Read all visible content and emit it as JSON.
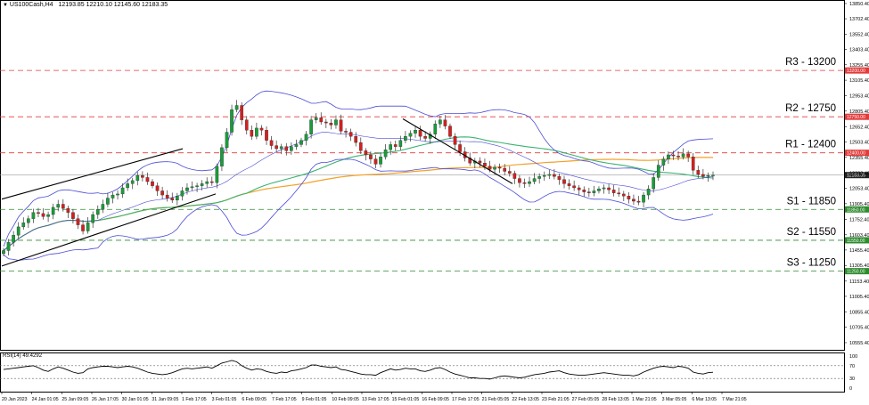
{
  "header": {
    "symbol": "US100Cash,H4",
    "ohlc": "12193.85 12210.10 12145.60 12183.35"
  },
  "rsi_header": "RSI(14) 49.4292",
  "colors": {
    "resistance": "#e23b3b",
    "support": "#2e8b2e",
    "bull": "#1a9c3a",
    "bear": "#d22020",
    "bollinger": "#4b4bd6",
    "ma_green": "#3cb371",
    "ma_orange": "#f2a22a",
    "channel": "#000000",
    "trendline": "#000000",
    "rsi": "#000000"
  },
  "chart_data": {
    "type": "candlestick",
    "symbol": "US100Cash",
    "timeframe": "H4",
    "ylim": [
      10555,
      13850
    ],
    "price_ticks": [
      "13850.40",
      "13702.40",
      "13552.40",
      "13403.40",
      "13255.40",
      "13105.40",
      "12953.40",
      "12805.40",
      "12652.40",
      "12503.40",
      "12355.40",
      "12203.40",
      "12053.40",
      "11905.40",
      "11752.40",
      "11603.40",
      "11455.40",
      "11305.40",
      "11153.40",
      "11005.40",
      "10855.40",
      "10705.40",
      "10555.40"
    ],
    "current_price": "12183.35",
    "levels": [
      {
        "name": "R3 - 13200",
        "value": 13200,
        "tag": "13200.00",
        "kind": "resistance"
      },
      {
        "name": "R2 - 12750",
        "value": 12750,
        "tag": "12750.00",
        "kind": "resistance"
      },
      {
        "name": "R1 - 12400",
        "value": 12400,
        "tag": "12400.00",
        "kind": "resistance"
      },
      {
        "name": "S1 - 11850",
        "value": 11850,
        "tag": "11850.00",
        "kind": "support"
      },
      {
        "name": "S2 - 11550",
        "value": 11550,
        "tag": "11550.00",
        "kind": "support"
      },
      {
        "name": "S3 - 11250",
        "value": 11250,
        "tag": "11250.00",
        "kind": "support"
      }
    ],
    "x_labels": [
      "20 Jan 2023",
      "24 Jan 01:05",
      "25 Jan 09:05",
      "26 Jan 17:05",
      "30 Jan 01:05",
      "31 Jan 09:05",
      "1 Feb 17:05",
      "3 Feb 01:05",
      "6 Feb 09:05",
      "7 Feb 17:05",
      "9 Feb 01:05",
      "10 Feb 09:05",
      "13 Feb 17:05",
      "15 Feb 01:05",
      "16 Feb 09:05",
      "17 Feb 17:05",
      "21 Feb 05:05",
      "22 Feb 13:05",
      "23 Feb 21:05",
      "27 Feb 05:05",
      "28 Feb 13:05",
      "1 Mar 21:05",
      "3 Mar 05:05",
      "6 Mar 13:05",
      "7 Mar 21:05"
    ],
    "closes": [
      11450,
      11530,
      11600,
      11680,
      11720,
      11760,
      11820,
      11810,
      11780,
      11800,
      11870,
      11900,
      11860,
      11820,
      11760,
      11700,
      11640,
      11720,
      11800,
      11850,
      11900,
      11960,
      11990,
      12000,
      12060,
      12100,
      12130,
      12180,
      12160,
      12120,
      12080,
      12030,
      11990,
      11960,
      11940,
      11980,
      12030,
      12060,
      12070,
      12080,
      12100,
      12120,
      12110,
      12270,
      12450,
      12600,
      12820,
      12860,
      12720,
      12620,
      12560,
      12640,
      12620,
      12520,
      12470,
      12440,
      12460,
      12420,
      12460,
      12480,
      12520,
      12580,
      12720,
      12740,
      12700,
      12690,
      12670,
      12720,
      12610,
      12600,
      12560,
      12500,
      12420,
      12380,
      12340,
      12290,
      12360,
      12430,
      12480,
      12460,
      12520,
      12560,
      12590,
      12620,
      12560,
      12540,
      12580,
      12680,
      12720,
      12660,
      12560,
      12480,
      12410,
      12350,
      12300,
      12320,
      12300,
      12270,
      12240,
      12260,
      12250,
      12220,
      12200,
      12150,
      12110,
      12100,
      12120,
      12150,
      12170,
      12180,
      12190,
      12170,
      12140,
      12100,
      12080,
      12060,
      12040,
      12020,
      12010,
      12030,
      12050,
      12060,
      12040,
      12010,
      12000,
      11980,
      11950,
      11930,
      11920,
      11990,
      12050,
      12160,
      12280,
      12340,
      12380,
      12370,
      12360,
      12390,
      12360,
      12230,
      12190,
      12170,
      12180,
      12183
    ],
    "rsi": {
      "name": "RSI(14)",
      "value": 49.4292,
      "ylim": [
        0,
        100
      ],
      "levels": [
        30,
        70
      ],
      "ticks": [
        "100",
        "70",
        "30",
        "0"
      ],
      "values": [
        58,
        60,
        62,
        64,
        66,
        68,
        70,
        64,
        56,
        52,
        60,
        66,
        62,
        56,
        50,
        46,
        48,
        60,
        64,
        66,
        68,
        68,
        66,
        64,
        66,
        68,
        66,
        62,
        56,
        50,
        46,
        44,
        42,
        44,
        48,
        54,
        60,
        62,
        60,
        62,
        64,
        66,
        62,
        70,
        78,
        82,
        86,
        82,
        70,
        62,
        56,
        60,
        58,
        52,
        48,
        46,
        50,
        48,
        54,
        56,
        60,
        64,
        72,
        72,
        68,
        66,
        64,
        66,
        58,
        56,
        52,
        48,
        44,
        42,
        42,
        40,
        48,
        54,
        60,
        56,
        58,
        62,
        60,
        60,
        54,
        52,
        56,
        62,
        64,
        58,
        50,
        44,
        40,
        36,
        32,
        32,
        30,
        30,
        28,
        32,
        36,
        38,
        36,
        34,
        32,
        34,
        38,
        42,
        44,
        46,
        50,
        52,
        54,
        48,
        44,
        42,
        40,
        40,
        42,
        44,
        46,
        48,
        46,
        44,
        42,
        40,
        40,
        38,
        42,
        50,
        56,
        62,
        66,
        68,
        66,
        64,
        68,
        66,
        62,
        50,
        46,
        44,
        48,
        49.43
      ]
    }
  }
}
